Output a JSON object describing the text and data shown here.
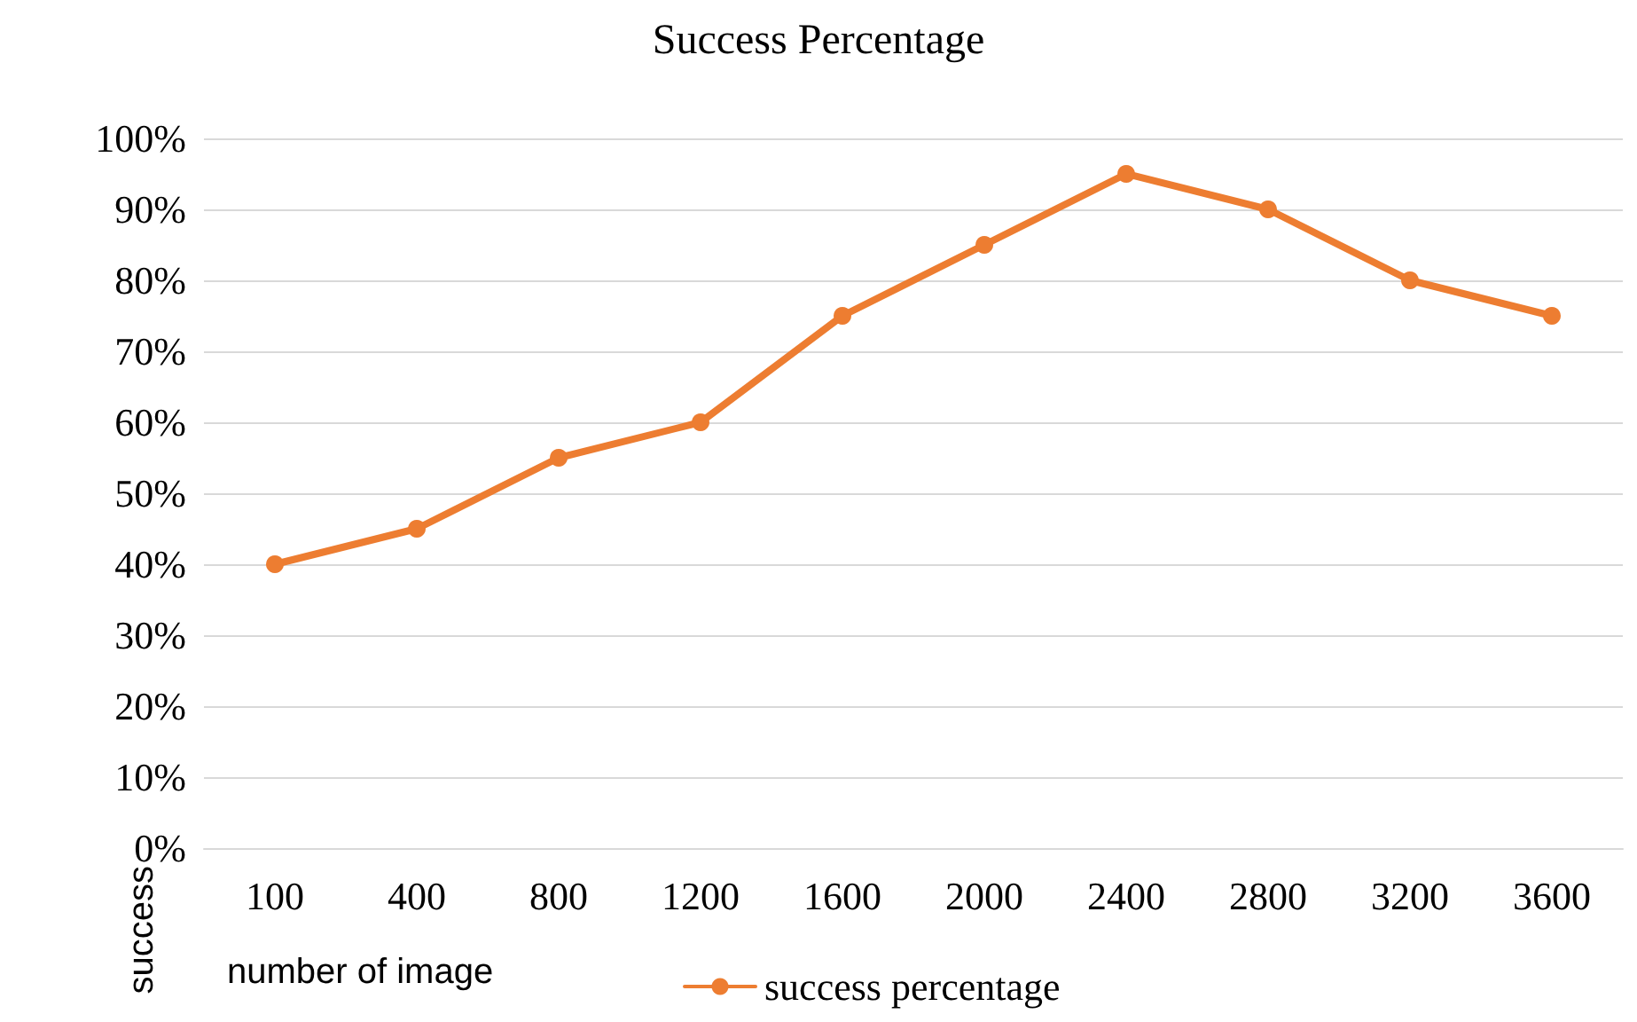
{
  "chart_data": {
    "type": "line",
    "title": "Success Percentage",
    "xlabel": "number of image",
    "ylabel": "success",
    "categories": [
      "100",
      "400",
      "800",
      "1200",
      "1600",
      "2000",
      "2400",
      "2800",
      "3200",
      "3600"
    ],
    "series": [
      {
        "name": "success percentage",
        "color": "#ed7d31",
        "values": [
          40,
          45,
          55,
          60,
          75,
          85,
          95,
          90,
          80,
          75
        ]
      }
    ],
    "ylim": [
      0,
      100
    ],
    "yticks": [
      {
        "value": 0,
        "label": "0%"
      },
      {
        "value": 10,
        "label": "10%"
      },
      {
        "value": 20,
        "label": "20%"
      },
      {
        "value": 30,
        "label": "30%"
      },
      {
        "value": 40,
        "label": "40%"
      },
      {
        "value": 50,
        "label": "50%"
      },
      {
        "value": 60,
        "label": "60%"
      },
      {
        "value": 70,
        "label": "70%"
      },
      {
        "value": 80,
        "label": "80%"
      },
      {
        "value": 90,
        "label": "90%"
      },
      {
        "value": 100,
        "label": "100%"
      }
    ],
    "grid": "y",
    "legend": "bottom",
    "marker": "circle",
    "line_style": "solid"
  }
}
